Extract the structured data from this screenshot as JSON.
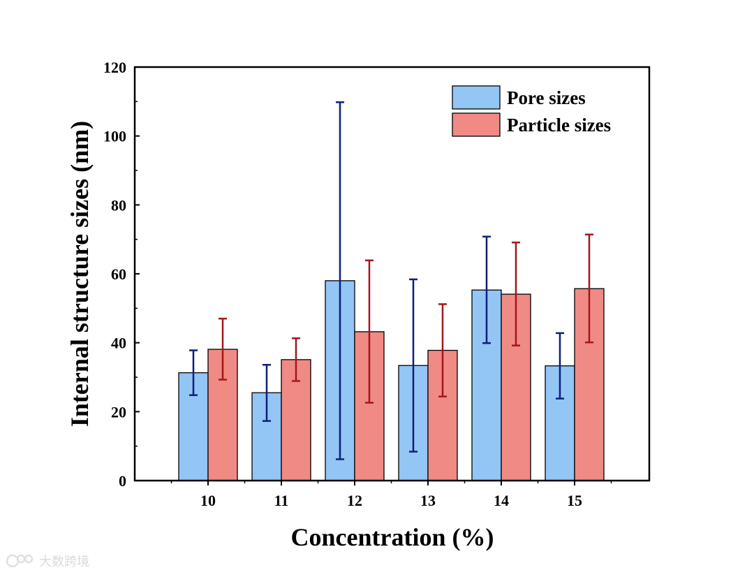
{
  "chart_data": {
    "type": "bar",
    "title": "",
    "xlabel": "Concentration (%)",
    "ylabel": "Internal structure sizes (nm)",
    "categories": [
      "10",
      "11",
      "12",
      "13",
      "14",
      "15"
    ],
    "ylim": [
      0,
      120
    ],
    "yticks": [
      "0",
      "20",
      "40",
      "60",
      "80",
      "100",
      "120"
    ],
    "legend_position": "top-right",
    "series": [
      {
        "name": "Pore sizes",
        "color": "#93C5F5",
        "error_color": "#0D1F7A",
        "values": [
          31.3,
          25.5,
          58.0,
          33.4,
          55.3,
          33.3
        ],
        "err_low": [
          24.8,
          17.3,
          6.2,
          8.4,
          39.9,
          23.8
        ],
        "err_high": [
          37.8,
          33.6,
          109.8,
          58.4,
          70.8,
          42.8
        ]
      },
      {
        "name": "Particle sizes",
        "color": "#F08A84",
        "error_color": "#A3161C",
        "values": [
          38.1,
          35.1,
          43.2,
          37.8,
          54.1,
          55.7
        ],
        "err_low": [
          29.3,
          28.9,
          22.6,
          24.4,
          39.2,
          40.1
        ],
        "err_high": [
          47.0,
          41.3,
          63.9,
          51.2,
          69.1,
          71.4
        ]
      }
    ]
  },
  "watermark": {
    "text": "大数跨境",
    "icon": "logo-icon"
  }
}
